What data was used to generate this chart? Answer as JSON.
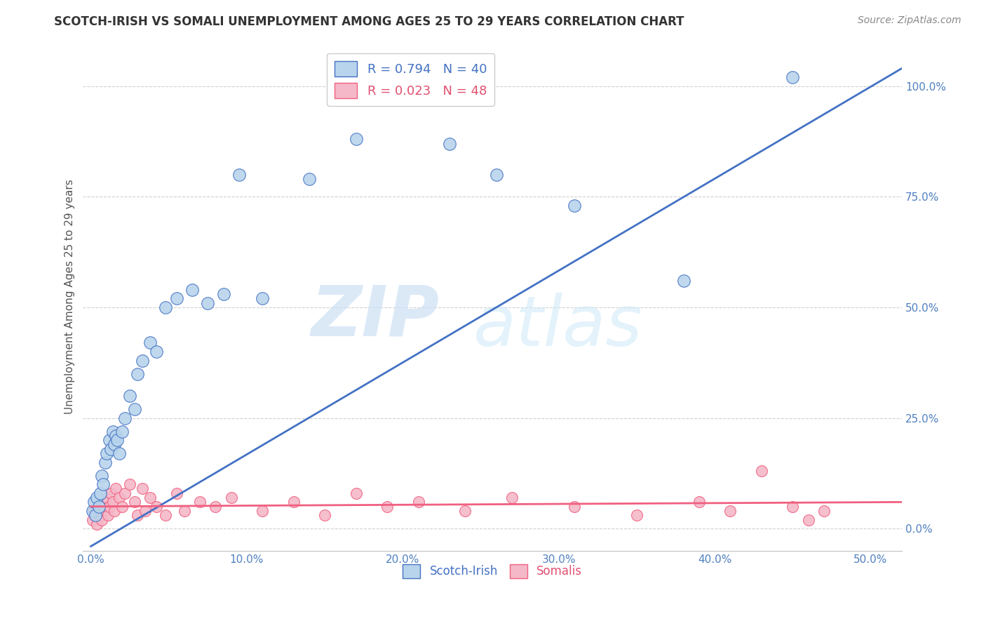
{
  "title": "SCOTCH-IRISH VS SOMALI UNEMPLOYMENT AMONG AGES 25 TO 29 YEARS CORRELATION CHART",
  "source": "Source: ZipAtlas.com",
  "xlabel_ticks": [
    "0.0%",
    "10.0%",
    "20.0%",
    "30.0%",
    "40.0%",
    "50.0%"
  ],
  "ylabel_ticks": [
    "0.0%",
    "25.0%",
    "50.0%",
    "75.0%",
    "100.0%"
  ],
  "xlabel_vals": [
    0.0,
    0.1,
    0.2,
    0.3,
    0.4,
    0.5
  ],
  "ylabel_vals": [
    0.0,
    0.25,
    0.5,
    0.75,
    1.0
  ],
  "xlim": [
    -0.005,
    0.52
  ],
  "ylim": [
    -0.05,
    1.1
  ],
  "ylabel": "Unemployment Among Ages 25 to 29 years",
  "scotch_irish_R": 0.794,
  "scotch_irish_N": 40,
  "somali_R": 0.023,
  "somali_N": 48,
  "scotch_irish_color": "#b8d4ec",
  "somali_color": "#f4b8c8",
  "scotch_irish_line_color": "#4472c4",
  "somali_line_color": "#f06080",
  "legend_label_blue": "R = 0.794   N = 40",
  "legend_label_pink": "R = 0.023   N = 48",
  "watermark_zip": "ZIP",
  "watermark_atlas": "atlas",
  "scotch_irish_x": [
    0.001,
    0.002,
    0.003,
    0.004,
    0.005,
    0.006,
    0.007,
    0.008,
    0.009,
    0.01,
    0.012,
    0.013,
    0.014,
    0.015,
    0.016,
    0.017,
    0.018,
    0.02,
    0.022,
    0.025,
    0.028,
    0.03,
    0.033,
    0.038,
    0.042,
    0.048,
    0.055,
    0.065,
    0.075,
    0.085,
    0.095,
    0.11,
    0.14,
    0.17,
    0.2,
    0.23,
    0.26,
    0.31,
    0.38,
    0.45
  ],
  "scotch_irish_y": [
    0.04,
    0.06,
    0.03,
    0.07,
    0.05,
    0.08,
    0.12,
    0.1,
    0.15,
    0.17,
    0.2,
    0.18,
    0.22,
    0.19,
    0.21,
    0.2,
    0.17,
    0.22,
    0.25,
    0.3,
    0.27,
    0.35,
    0.38,
    0.42,
    0.4,
    0.5,
    0.52,
    0.54,
    0.51,
    0.53,
    0.8,
    0.52,
    0.79,
    0.88,
    1.02,
    0.87,
    0.8,
    0.73,
    0.56,
    1.02
  ],
  "somali_x": [
    0.001,
    0.002,
    0.003,
    0.004,
    0.005,
    0.006,
    0.007,
    0.008,
    0.009,
    0.01,
    0.011,
    0.012,
    0.013,
    0.014,
    0.015,
    0.016,
    0.018,
    0.02,
    0.022,
    0.025,
    0.028,
    0.03,
    0.033,
    0.035,
    0.038,
    0.042,
    0.048,
    0.055,
    0.06,
    0.07,
    0.08,
    0.09,
    0.11,
    0.13,
    0.15,
    0.17,
    0.19,
    0.21,
    0.24,
    0.27,
    0.31,
    0.35,
    0.39,
    0.41,
    0.43,
    0.45,
    0.46,
    0.47
  ],
  "somali_y": [
    0.02,
    0.04,
    0.03,
    0.01,
    0.05,
    0.03,
    0.02,
    0.06,
    0.04,
    0.07,
    0.03,
    0.05,
    0.08,
    0.06,
    0.04,
    0.09,
    0.07,
    0.05,
    0.08,
    0.1,
    0.06,
    0.03,
    0.09,
    0.04,
    0.07,
    0.05,
    0.03,
    0.08,
    0.04,
    0.06,
    0.05,
    0.07,
    0.04,
    0.06,
    0.03,
    0.08,
    0.05,
    0.06,
    0.04,
    0.07,
    0.05,
    0.03,
    0.06,
    0.04,
    0.13,
    0.05,
    0.02,
    0.04
  ],
  "si_line_x": [
    0.0,
    0.52
  ],
  "si_line_y": [
    -0.04,
    1.04
  ],
  "so_line_x": [
    0.0,
    0.52
  ],
  "so_line_y": [
    0.05,
    0.06
  ]
}
